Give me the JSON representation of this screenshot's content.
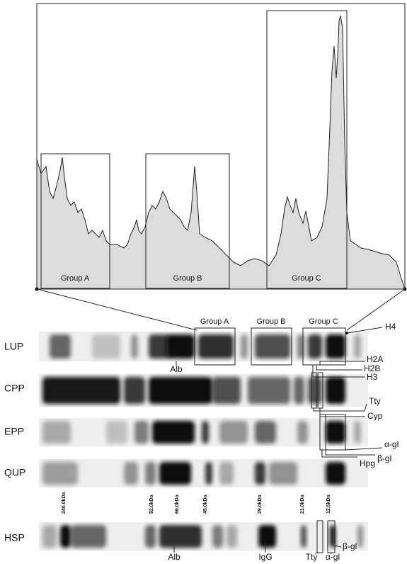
{
  "densitogram": {
    "groups": [
      "Group A",
      "Group B",
      "Group C"
    ]
  },
  "gel": {
    "group_labels": [
      "Group A",
      "Group B",
      "Group C"
    ],
    "lanes": [
      "LUP",
      "CPP",
      "EPP",
      "QUP",
      "HSP"
    ],
    "markers": [
      "240.0kDa",
      "92.0kDa",
      "66.0kDa",
      "45.0kDa",
      "29.0kDa",
      "21.0kDa",
      "12.5kDa"
    ],
    "lup_label": "Alb",
    "band_labels": [
      "H4",
      "H2A",
      "H2B",
      "H3",
      "Tty",
      "Cyp",
      "α-gl",
      "β-gl",
      "Hpg"
    ],
    "hsp_labels": [
      "Alb",
      "IgG",
      "Tty",
      "α-gl",
      "β-gl"
    ]
  }
}
